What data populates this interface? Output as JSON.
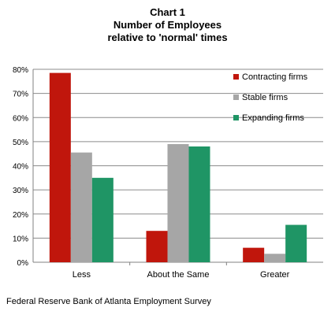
{
  "chart_data": {
    "type": "bar",
    "title": "Chart 1",
    "subtitle_line1": "Number of Employees",
    "subtitle_line2": "relative to 'normal' times",
    "categories": [
      "Less",
      "About the Same",
      "Greater"
    ],
    "series": [
      {
        "name": "Contracting firms",
        "color": "#C0160C",
        "values": [
          78.5,
          13,
          6
        ]
      },
      {
        "name": "Stable firms",
        "color": "#A6A6A6",
        "values": [
          45.5,
          49,
          3.5
        ]
      },
      {
        "name": "Expanding firms",
        "color": "#1F9565",
        "values": [
          35,
          48,
          15.5
        ]
      }
    ],
    "yticks": [
      "0%",
      "10%",
      "20%",
      "30%",
      "40%",
      "50%",
      "60%",
      "70%",
      "80%"
    ],
    "ylim": [
      0,
      80
    ],
    "grid": true,
    "legend_position": "right"
  },
  "source": "Federal Reserve Bank of Atlanta Employment Survey"
}
